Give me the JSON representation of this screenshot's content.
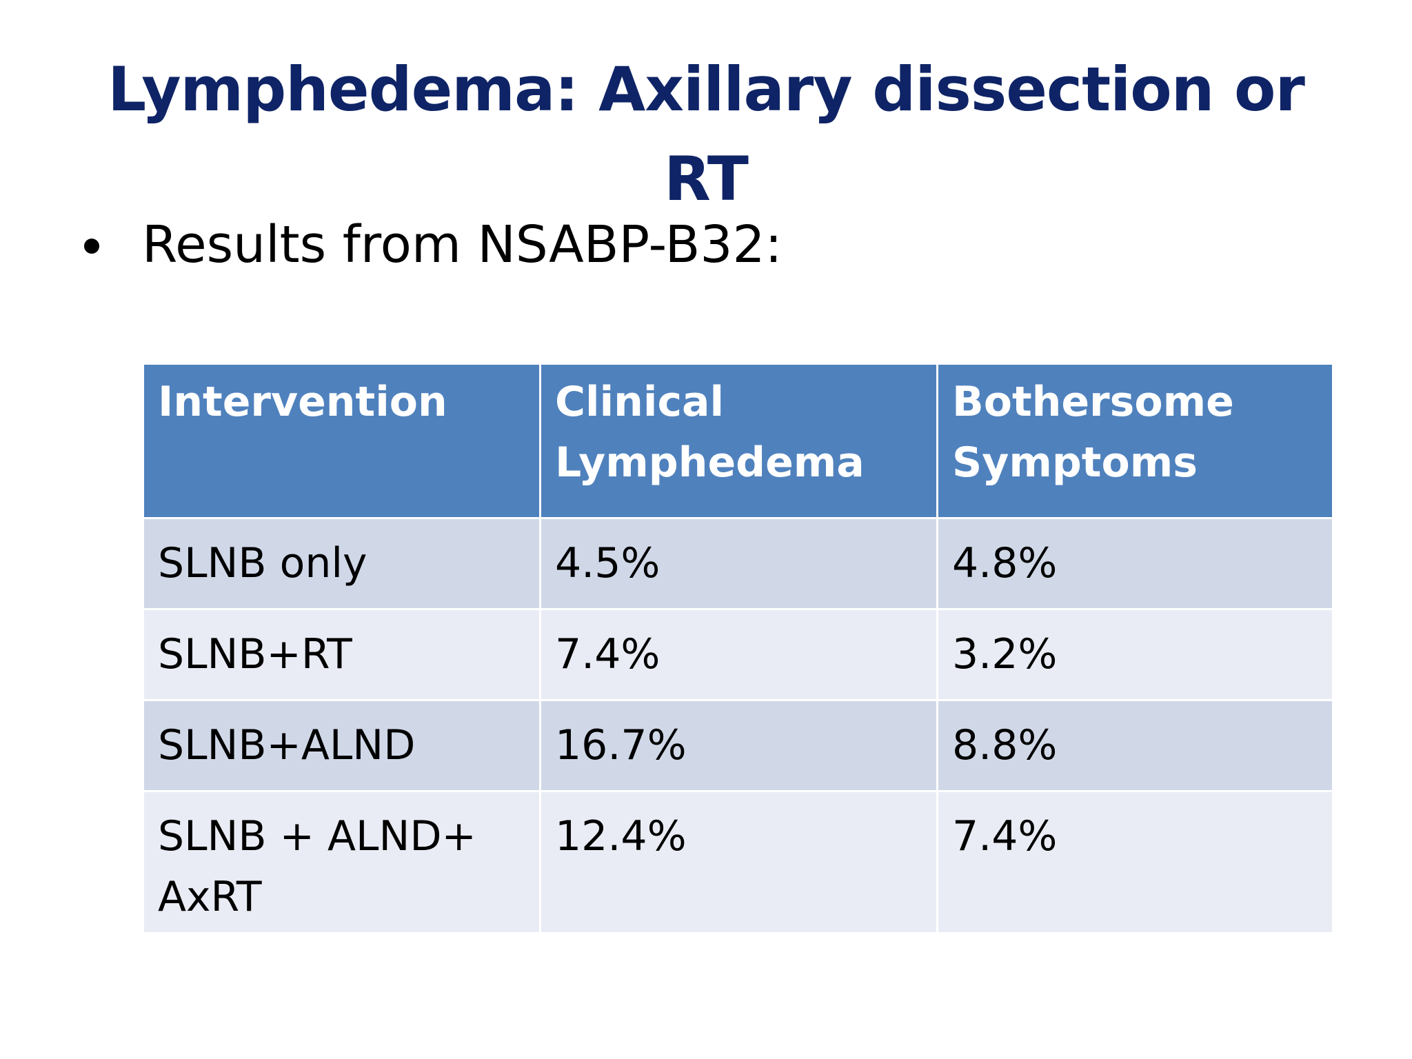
{
  "slide": {
    "title_line1": "Lymphedema: Axillary dissection or",
    "title_line2": "RT",
    "bullet": "Results from NSABP-B32:"
  },
  "table": {
    "headers": [
      "Intervention",
      "Clinical Lymphedema",
      "Bothersome Symptoms"
    ],
    "rows": [
      [
        "SLNB only",
        "4.5%",
        "4.8%"
      ],
      [
        "SLNB+RT",
        "7.4%",
        "3.2%"
      ],
      [
        "SLNB+ALND",
        "16.7%",
        "8.8%"
      ],
      [
        "SLNB + ALND+ AxRT",
        "12.4%",
        "7.4%"
      ]
    ]
  },
  "colors": {
    "title": "#0f2466",
    "header_bg": "#4f81bd",
    "row_odd_bg": "#d0d8e8",
    "row_even_bg": "#e9ecf4"
  }
}
